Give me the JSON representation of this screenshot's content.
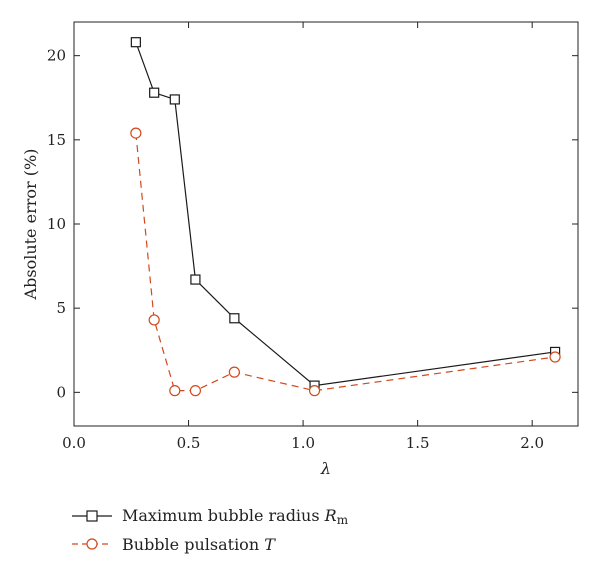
{
  "chart_data": {
    "type": "line",
    "xlabel": "λ",
    "ylabel": "Absolute error (%)",
    "xlim": [
      0.0,
      2.2
    ],
    "ylim": [
      -2,
      22
    ],
    "xticks": [
      "0.0",
      "0.5",
      "1.0",
      "1.5",
      "2.0"
    ],
    "xtick_values": [
      0.0,
      0.5,
      1.0,
      1.5,
      2.0
    ],
    "yticks": [
      "0",
      "5",
      "10",
      "15",
      "20"
    ],
    "ytick_values": [
      0,
      5,
      10,
      15,
      20
    ],
    "grid": false,
    "legend_position": "below",
    "series": [
      {
        "name_text": "Maximum bubble radius ",
        "name_symbol": "R",
        "name_subscript": "m",
        "color": "#1a1a1a",
        "line_style": "solid",
        "marker": "square",
        "x": [
          0.27,
          0.35,
          0.44,
          0.53,
          0.7,
          1.05,
          2.1
        ],
        "y": [
          20.8,
          17.8,
          17.4,
          6.7,
          4.4,
          0.4,
          2.4
        ]
      },
      {
        "name_text": "Bubble pulsation ",
        "name_symbol": "T",
        "color": "#d2491c",
        "line_style": "dashed",
        "marker": "circle",
        "x": [
          0.27,
          0.35,
          0.44,
          0.53,
          0.7,
          1.05,
          2.1
        ],
        "y": [
          15.4,
          4.3,
          0.1,
          0.1,
          1.2,
          0.1,
          2.1
        ]
      }
    ]
  }
}
